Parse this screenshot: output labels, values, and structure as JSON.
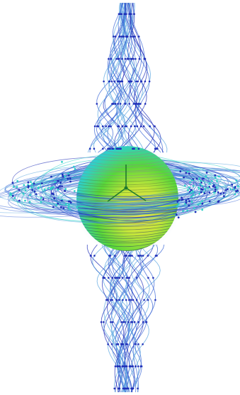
{
  "image": {
    "subject": "streamline-visualization",
    "background_color": "#ffffff",
    "colors": {
      "dark_blue": "#1f2fb8",
      "blue": "#3a66d6",
      "light_blue": "#5aa6e0",
      "cyan": "#2fd0c8",
      "green": "#58d63a",
      "yellow_green": "#c5e63a",
      "yellow": "#e8e050",
      "dark_green": "#1e7a2e",
      "gray": "#8a8a8a"
    }
  }
}
